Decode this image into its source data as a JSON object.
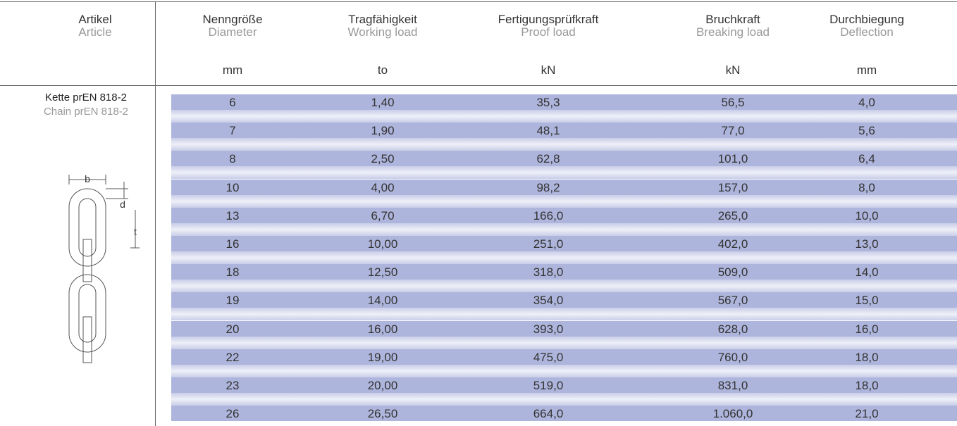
{
  "header": {
    "article": {
      "de": "Artikel",
      "en": "Article"
    },
    "columns": [
      {
        "de": "Nenngröße",
        "en": "Diameter",
        "unit": "mm"
      },
      {
        "de": "Tragfähigkeit",
        "en": "Working load",
        "unit": "to"
      },
      {
        "de": "Fertigungsprüfkraft",
        "en": "Proof load",
        "unit": "kN"
      },
      {
        "de": "Bruchkraft",
        "en": "Breaking load",
        "unit": "kN"
      },
      {
        "de": "Durchbiegung",
        "en": "Deflection",
        "unit": "mm"
      }
    ]
  },
  "article": {
    "de": "Kette prEN 818-2",
    "en": "Chain prEN 818-2"
  },
  "diagram": {
    "b": "b",
    "d": "d",
    "t": "t"
  },
  "table": {
    "rows": [
      [
        "6",
        "1,40",
        "35,3",
        "56,5",
        "4,0"
      ],
      [
        "7",
        "1,90",
        "48,1",
        "77,0",
        "5,6"
      ],
      [
        "8",
        "2,50",
        "62,8",
        "101,0",
        "6,4"
      ],
      [
        "10",
        "4,00",
        "98,2",
        "157,0",
        "8,0"
      ],
      [
        "13",
        "6,70",
        "166,0",
        "265,0",
        "10,0"
      ],
      [
        "16",
        "10,00",
        "251,0",
        "402,0",
        "13,0"
      ],
      [
        "18",
        "12,50",
        "318,0",
        "509,0",
        "14,0"
      ],
      [
        "19",
        "14,00",
        "354,0",
        "567,0",
        "15,0"
      ],
      [
        "20",
        "16,00",
        "393,0",
        "628,0",
        "16,0"
      ],
      [
        "22",
        "19,00",
        "475,0",
        "760,0",
        "18,0"
      ],
      [
        "23",
        "20,00",
        "519,0",
        "831,0",
        "18,0"
      ],
      [
        "26",
        "26,50",
        "664,0",
        "1.060,0",
        "21,0"
      ]
    ]
  }
}
